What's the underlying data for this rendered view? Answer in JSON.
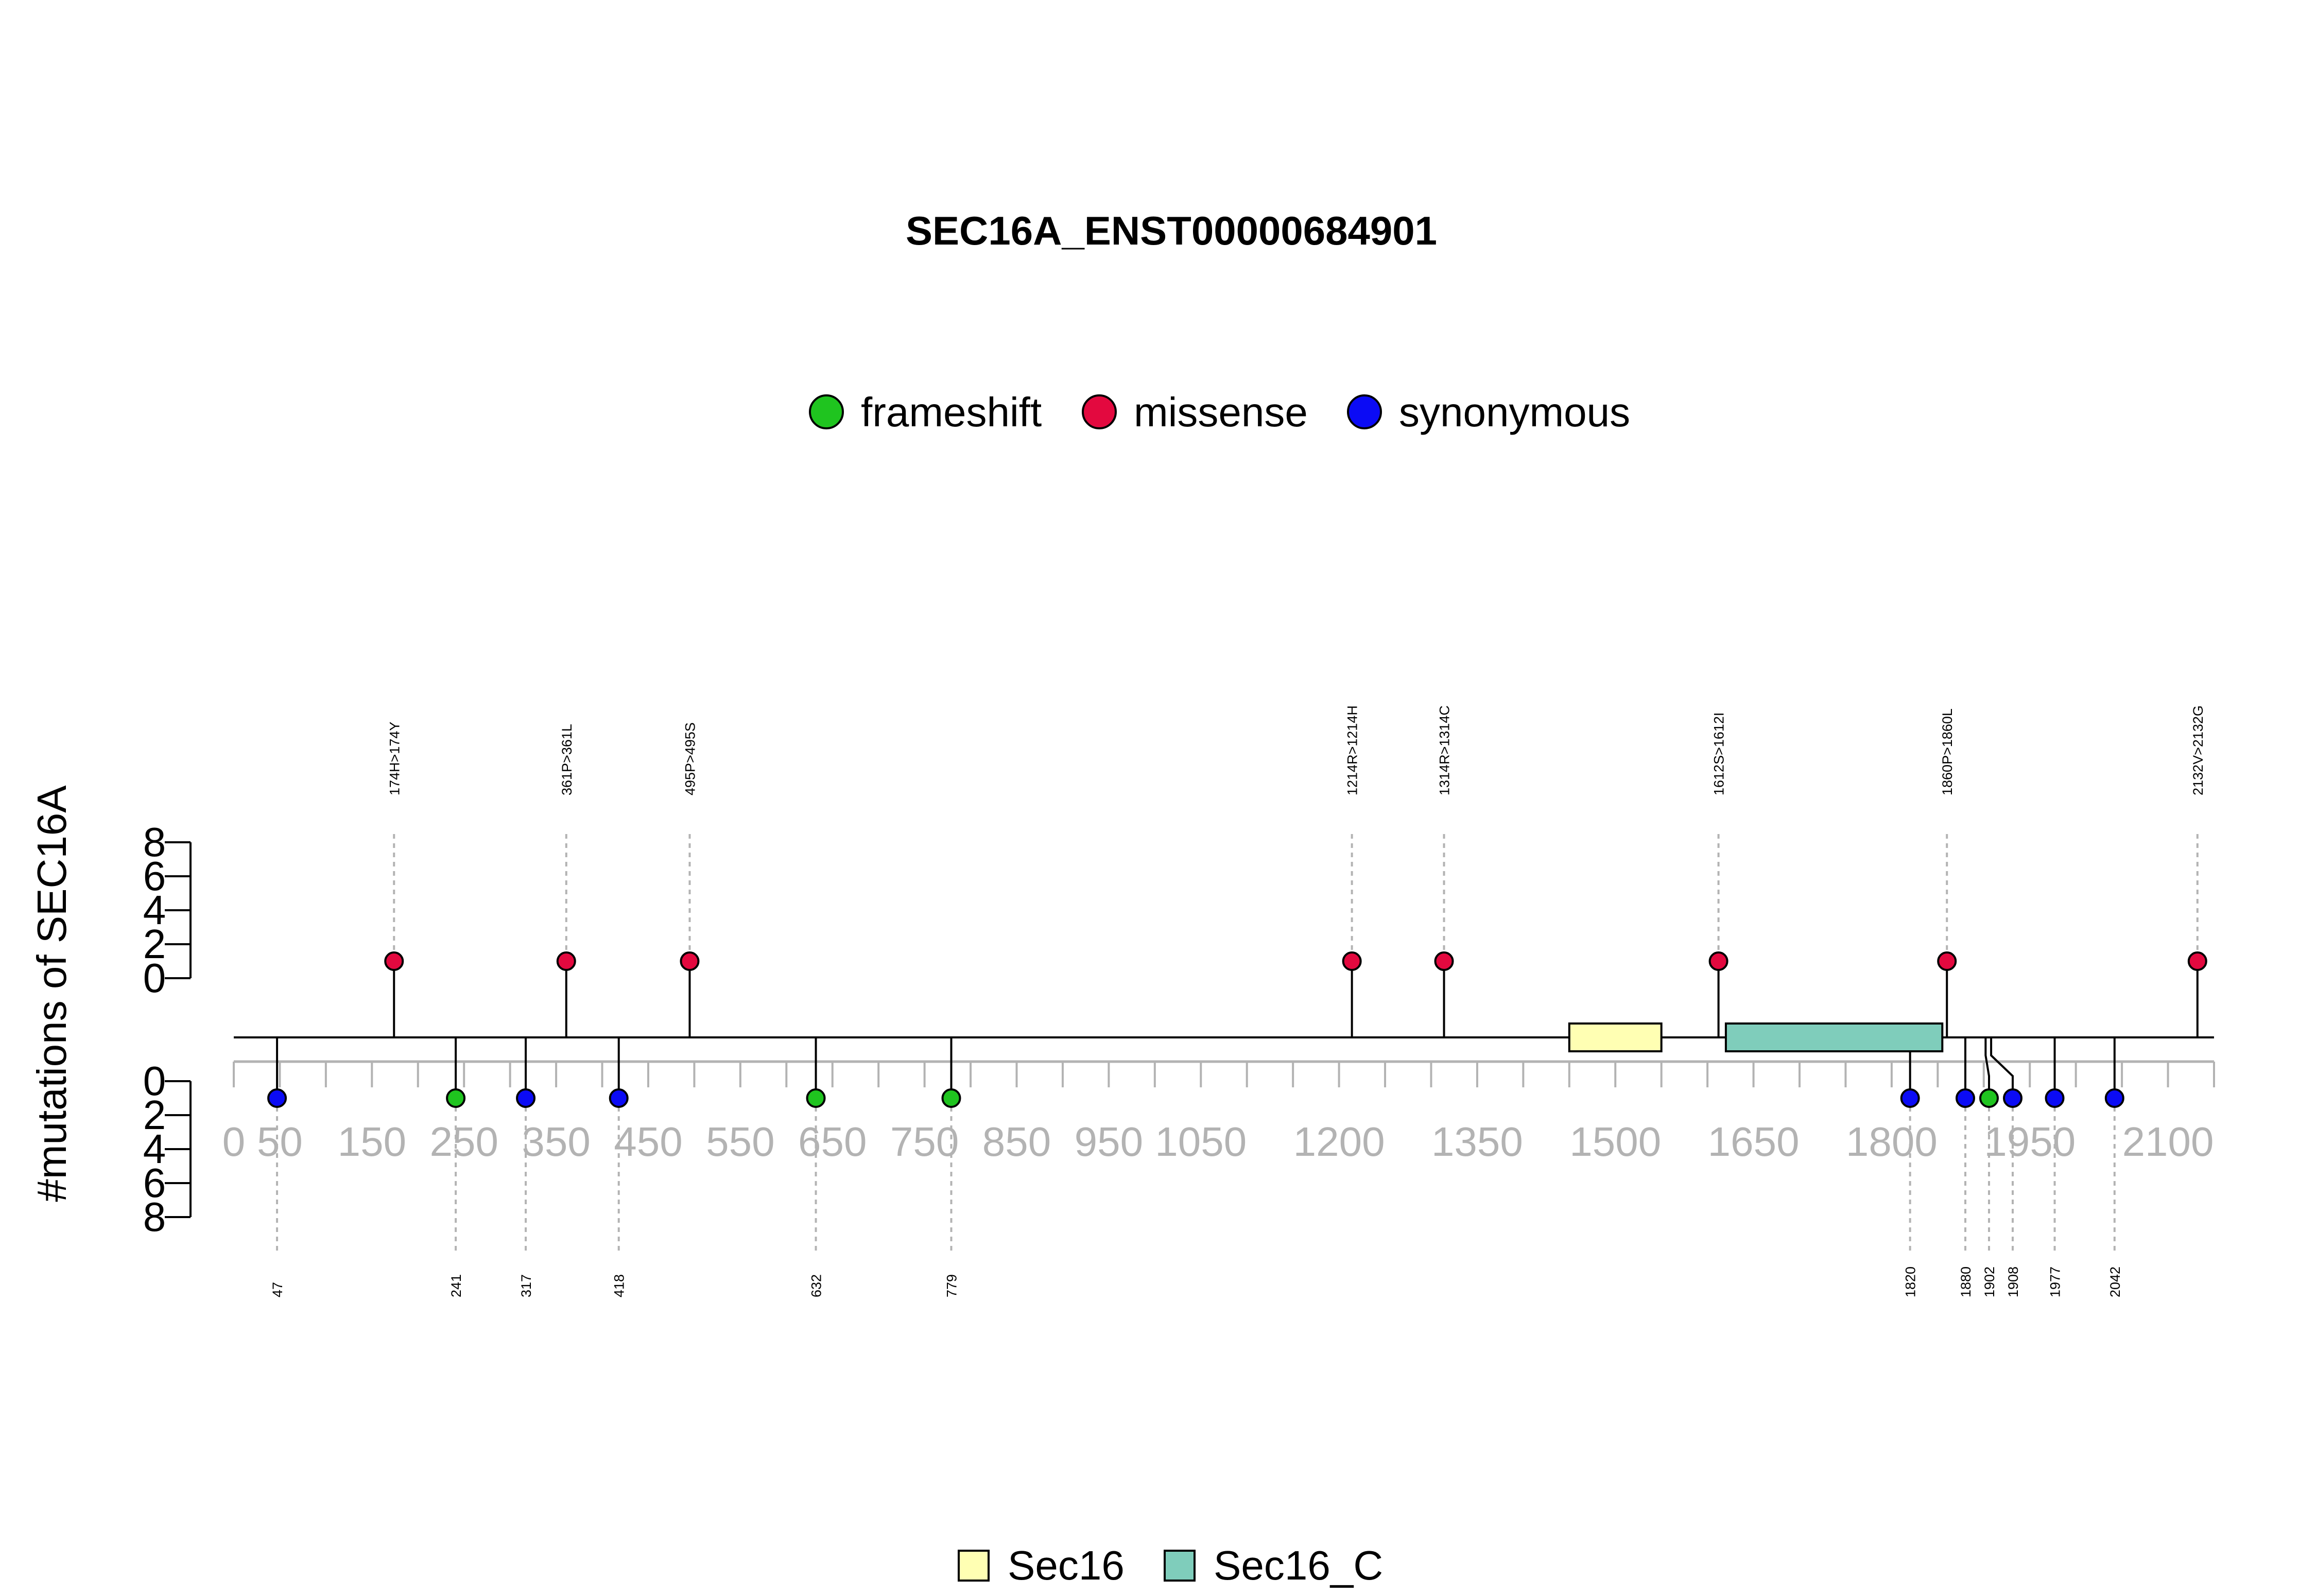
{
  "chart_data": {
    "type": "lollipop",
    "title": "SEC16A_ENST00000684901",
    "ylabel": "#mutations of SEC16A",
    "xlim": [
      0,
      2150
    ],
    "ylim": [
      0,
      8
    ],
    "x_ticks": [
      0,
      50,
      150,
      250,
      350,
      450,
      550,
      650,
      750,
      850,
      950,
      1050,
      1200,
      1350,
      1500,
      1650,
      1800,
      1950,
      2100
    ],
    "y_ticks": [
      0,
      2,
      4,
      6,
      8
    ],
    "colors": {
      "frameshift": "#1fc41f",
      "missense": "#e3093f",
      "synonymous": "#0b0bf5",
      "Sec16": "#ffffb3",
      "Sec16_C": "#7fcdbb"
    },
    "mutation_legend": [
      {
        "name": "frameshift",
        "color": "#1fc41f"
      },
      {
        "name": "missense",
        "color": "#e3093f"
      },
      {
        "name": "synonymous",
        "color": "#0b0bf5"
      }
    ],
    "domain_legend": [
      {
        "name": "Sec16",
        "color": "#ffffb3"
      },
      {
        "name": "Sec16_C",
        "color": "#7fcdbb"
      }
    ],
    "domains": [
      {
        "name": "Sec16",
        "start": 1450,
        "end": 1550
      },
      {
        "name": "Sec16_C",
        "start": 1620,
        "end": 1855
      }
    ],
    "top_mutations": [
      {
        "pos": 174,
        "label": "174H>174Y",
        "type": "missense",
        "count": 1
      },
      {
        "pos": 361,
        "label": "361P>361L",
        "type": "missense",
        "count": 1
      },
      {
        "pos": 495,
        "label": "495P>495S",
        "type": "missense",
        "count": 1
      },
      {
        "pos": 1214,
        "label": "1214R>1214H",
        "type": "missense",
        "count": 1
      },
      {
        "pos": 1314,
        "label": "1314R>1314C",
        "type": "missense",
        "count": 1
      },
      {
        "pos": 1612,
        "label": "1612S>1612I",
        "type": "missense",
        "count": 1
      },
      {
        "pos": 1860,
        "label": "1860P>1860L",
        "type": "missense",
        "count": 1
      },
      {
        "pos": 2132,
        "label": "2132V>2132G",
        "type": "missense",
        "count": 1
      }
    ],
    "bottom_mutations": [
      {
        "pos": 47,
        "label": "47",
        "type": "synonymous",
        "count": 1
      },
      {
        "pos": 241,
        "label": "241",
        "type": "frameshift",
        "count": 1
      },
      {
        "pos": 317,
        "label": "317",
        "type": "synonymous",
        "count": 1
      },
      {
        "pos": 418,
        "label": "418",
        "type": "synonymous",
        "count": 1
      },
      {
        "pos": 632,
        "label": "632",
        "type": "frameshift",
        "count": 1
      },
      {
        "pos": 779,
        "label": "779",
        "type": "frameshift",
        "count": 1
      },
      {
        "pos": 1820,
        "label": "1820",
        "type": "synonymous",
        "count": 1
      },
      {
        "pos": 1880,
        "label": "1880",
        "type": "synonymous",
        "count": 1
      },
      {
        "pos": 1902,
        "label": "1902",
        "type": "frameshift",
        "count": 1
      },
      {
        "pos": 1908,
        "label": "1908",
        "type": "synonymous",
        "count": 1
      },
      {
        "pos": 1977,
        "label": "1977",
        "type": "synonymous",
        "count": 1
      },
      {
        "pos": 2042,
        "label": "2042",
        "type": "synonymous",
        "count": 1
      }
    ]
  }
}
